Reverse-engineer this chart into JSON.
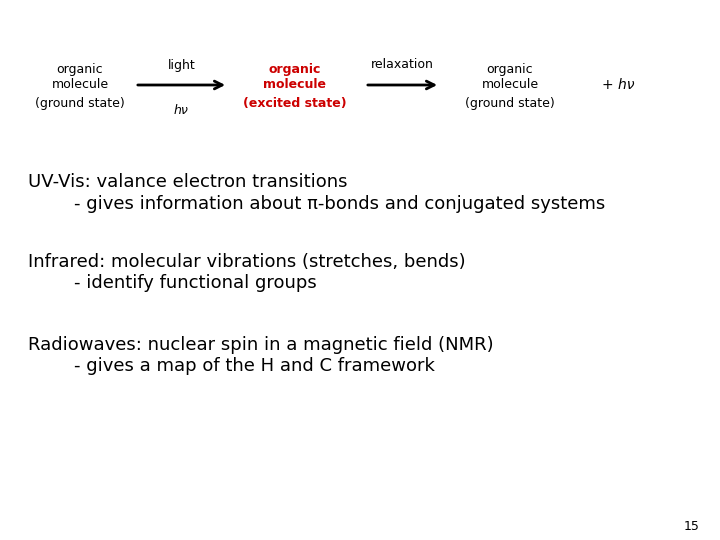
{
  "bg_color": "#ffffff",
  "box1_lines": [
    "organic",
    "molecule",
    "(ground state)"
  ],
  "box1_color": "#000000",
  "light_label": "light",
  "hv_label": "hν",
  "box2_lines": [
    "organic",
    "molecule",
    "(excited state)"
  ],
  "box2_color": "#cc0000",
  "relax_label": "relaxation",
  "box3_lines": [
    "organic",
    "molecule",
    "(ground state)"
  ],
  "box3_color": "#000000",
  "plus_hv": "+ hν",
  "plus_hv_color": "#000000",
  "bullet1_head": "UV-Vis: valance electron transitions",
  "bullet1_sub": "        - gives information about π-bonds and conjugated systems",
  "bullet2_head": "Infrared: molecular vibrations (stretches, bends)",
  "bullet2_sub": "        - identify functional groups",
  "bullet3_head": "Radiowaves: nuclear spin in a magnetic field (NMR)",
  "bullet3_sub": "        - gives a map of the H and C framework",
  "page_num": "15",
  "arrow_color": "#000000",
  "font_size_box": 9,
  "font_size_body": 13,
  "font_size_page": 9
}
